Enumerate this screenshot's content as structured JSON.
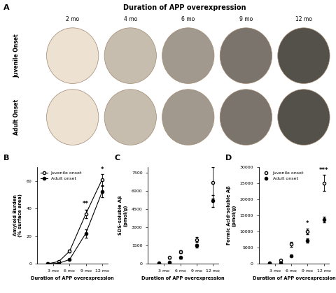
{
  "panel_a": {
    "label": "A",
    "title": "Duration of APP overexpression",
    "columns": [
      "2 mo",
      "4 mo",
      "6 mo",
      "9 mo",
      "12 mo"
    ],
    "rows": [
      "Juvenile Onset",
      "Adult Onset"
    ]
  },
  "chart_data": [
    {
      "type": "line",
      "title": "B",
      "x_label": "Duration of APP overexpression",
      "y_label": "Amyloid Burden\n(% surface area)",
      "x": [
        2,
        4,
        6,
        9,
        12
      ],
      "series": [
        {
          "name": "Juvenile onset",
          "color": "#000000",
          "marker": "open",
          "values": [
            0,
            1.5,
            9,
            36,
            61
          ],
          "errors": [
            0.2,
            0.4,
            1,
            3,
            4
          ]
        },
        {
          "name": "Adult onset",
          "color": "#000000",
          "marker": "filled",
          "values": [
            0,
            0.3,
            3,
            22,
            52
          ],
          "errors": [
            0.1,
            0.2,
            0.6,
            3,
            4
          ]
        }
      ],
      "xlim": [
        0,
        13
      ],
      "xticks": [
        {
          "value": 3,
          "label": "3 mo"
        },
        {
          "value": 6,
          "label": "6 mo"
        },
        {
          "value": 9,
          "label": "9 mo"
        },
        {
          "value": 12,
          "label": "12 mo"
        }
      ],
      "ylim": [
        0,
        70
      ],
      "yticks": [
        0,
        20,
        40,
        60
      ],
      "legend": "upper left",
      "annotations": [
        {
          "x": 9,
          "y": 41,
          "text": "**"
        },
        {
          "x": 12,
          "y": 66,
          "text": "*"
        }
      ]
    },
    {
      "type": "scatter",
      "title": "C",
      "x_label": "Duration of APP overexpression",
      "y_label": "SDS-soluble Aβ\n(pmol/g)",
      "x": [
        2,
        4,
        6,
        9,
        12
      ],
      "series": [
        {
          "name": "Juvenile onset",
          "color": "#000000",
          "marker": "open",
          "values": [
            50,
            500,
            1000,
            2000,
            6700
          ],
          "errors": [
            20,
            80,
            120,
            200,
            1300
          ]
        },
        {
          "name": "Adult onset",
          "color": "#000000",
          "marker": "filled",
          "values": [
            0,
            100,
            500,
            1500,
            5200
          ],
          "errors": [
            10,
            30,
            80,
            150,
            500
          ]
        }
      ],
      "xlim": [
        0,
        13
      ],
      "xticks": [
        {
          "value": 3,
          "label": "3 mo"
        },
        {
          "value": 6,
          "label": "6 mo"
        },
        {
          "value": 9,
          "label": "9 mo"
        },
        {
          "value": 12,
          "label": "12 mo"
        }
      ],
      "ylim": [
        0,
        8000
      ],
      "yticks": [
        0,
        1500,
        3000,
        4500,
        6000,
        7500
      ]
    },
    {
      "type": "scatter",
      "title": "D",
      "x_label": "Duration of APP overexpression",
      "y_label": "Formic Acid-soluble Aβ\n(pmol/g)",
      "x": [
        2,
        4,
        6,
        9,
        12
      ],
      "series": [
        {
          "name": "Juvenile onset",
          "color": "#000000",
          "marker": "open",
          "values": [
            200,
            1000,
            6000,
            10000,
            25000
          ],
          "errors": [
            50,
            200,
            700,
            800,
            2500
          ]
        },
        {
          "name": "Adult onset",
          "color": "#000000",
          "marker": "filled",
          "values": [
            0,
            300,
            2500,
            7200,
            13700
          ],
          "errors": [
            20,
            80,
            300,
            700,
            800
          ]
        }
      ],
      "xlim": [
        0,
        13
      ],
      "xticks": [
        {
          "value": 3,
          "label": "3 mo"
        },
        {
          "value": 6,
          "label": "6 mo"
        },
        {
          "value": 9,
          "label": "9 mo"
        },
        {
          "value": 12,
          "label": "12 mo"
        }
      ],
      "ylim": [
        0,
        30000
      ],
      "yticks": [
        0,
        5000,
        10000,
        15000,
        20000,
        25000,
        30000
      ],
      "legend": "upper left",
      "annotations": [
        {
          "x": 9,
          "y": 11500,
          "text": "*"
        },
        {
          "x": 12,
          "y": 28000,
          "text": "***"
        }
      ]
    }
  ]
}
